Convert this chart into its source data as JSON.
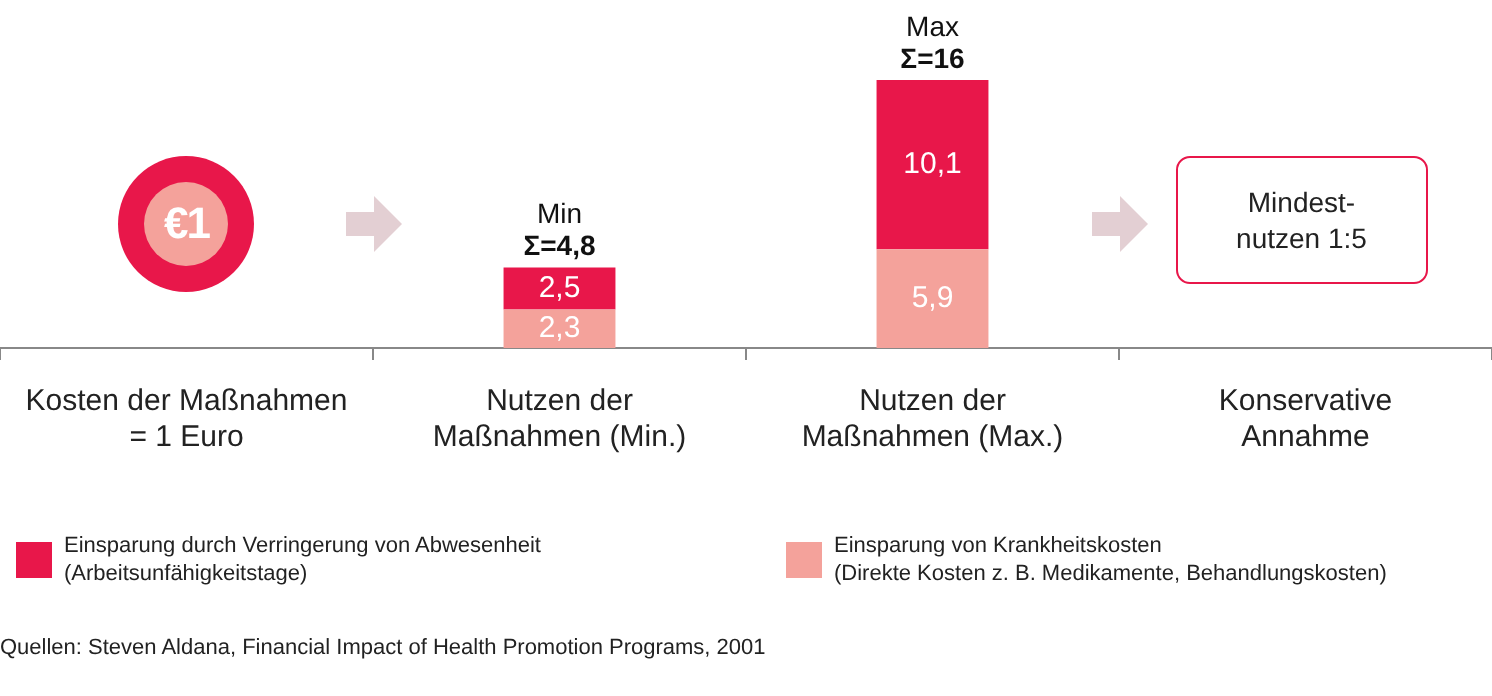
{
  "chart_data": {
    "type": "bar",
    "stacked": true,
    "tick_labels": "x",
    "grid": false,
    "legend": "bottom",
    "categories": [
      "Kosten der Maßnahmen\n= 1 Euro",
      "Nutzen der\nMaßnahmen (Min.)",
      "Nutzen der\nMaßnahmen (Max.)",
      "Konservative\nAnnahme"
    ],
    "series": [
      {
        "name": "Einsparung von Krankheitskosten\n(Direkte Kosten z. B. Medikamente, Behandlungskosten)",
        "color": "#f4a29b",
        "values": [
          null,
          2.3,
          5.9,
          null
        ],
        "value_labels": [
          null,
          "2,3",
          "5,9",
          null
        ]
      },
      {
        "name": "Einsparung durch Verringerung von Abwesenheit\n(Arbeitsunfähigkeitstage)",
        "color": "#e8174a",
        "values": [
          null,
          2.5,
          10.1,
          null
        ],
        "value_labels": [
          null,
          "2,5",
          "10,1",
          null
        ]
      }
    ],
    "totals": [
      null,
      "Min\nΣ=4,8",
      "Max\nΣ=16",
      null
    ],
    "annotations": [
      "€1",
      "Mindest-\nnutzen 1:5",
      "Quellen: Steven Aldana, Financial Impact of Health Promotion Programs, 2001"
    ]
  }
}
